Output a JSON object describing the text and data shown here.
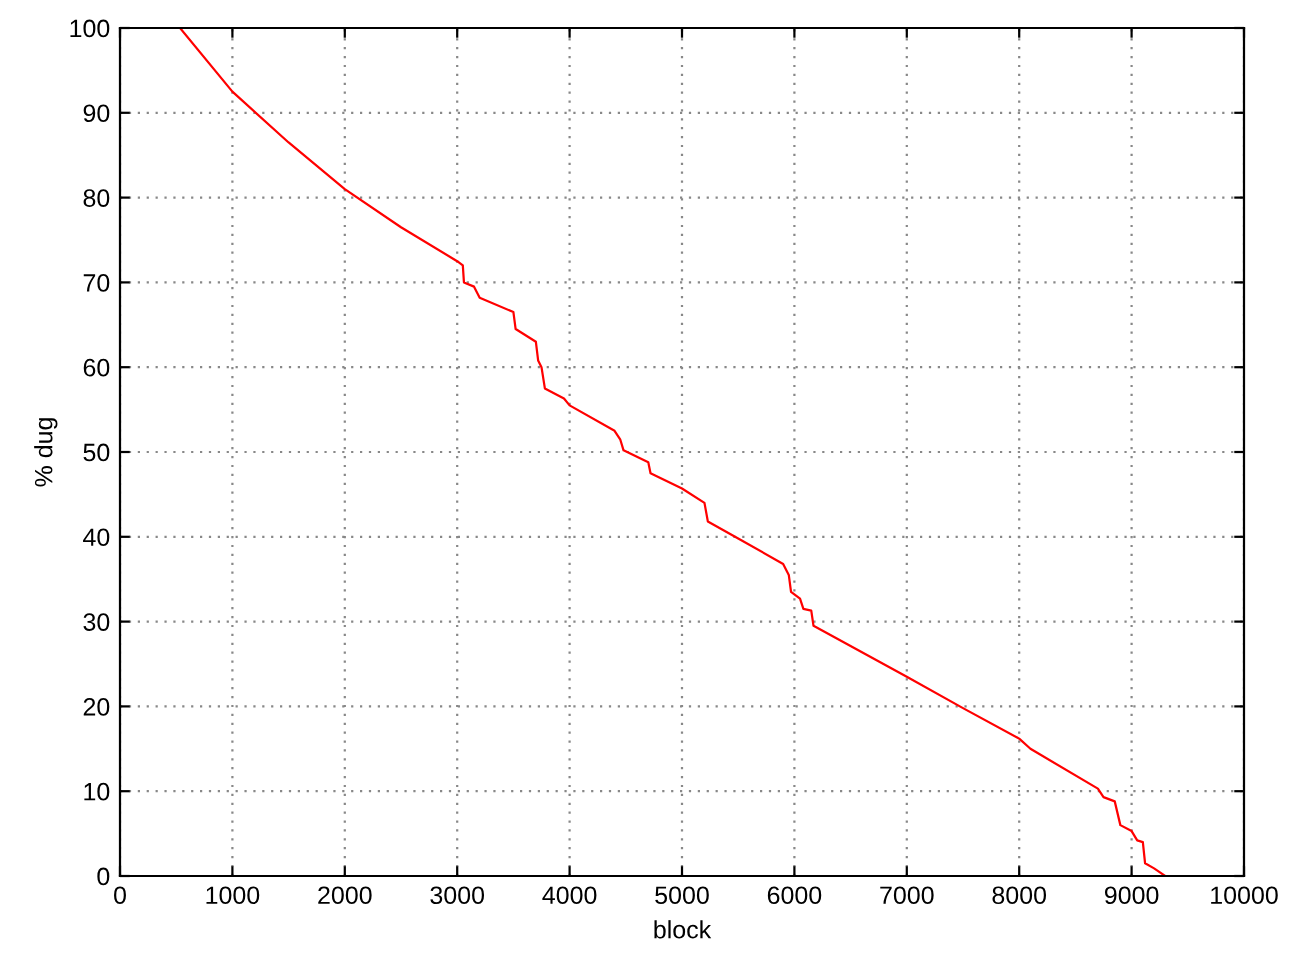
{
  "chart_data": {
    "type": "line",
    "xlabel": "block",
    "ylabel": "% dug",
    "xlim": [
      0,
      10000
    ],
    "ylim": [
      0,
      100
    ],
    "xticks": [
      0,
      1000,
      2000,
      3000,
      4000,
      5000,
      6000,
      7000,
      8000,
      9000,
      10000
    ],
    "yticks": [
      0,
      10,
      20,
      30,
      40,
      50,
      60,
      70,
      80,
      90,
      100
    ],
    "grid": true,
    "legend": false,
    "series": [
      {
        "color": "#ff0000",
        "x": [
          534,
          1000,
          1500,
          2000,
          2500,
          3000,
          3050,
          3060,
          3150,
          3200,
          3500,
          3520,
          3700,
          3720,
          3750,
          3780,
          3950,
          4000,
          4400,
          4450,
          4480,
          4700,
          4720,
          5000,
          5200,
          5230,
          5500,
          5900,
          5950,
          5970,
          6050,
          6080,
          6150,
          6170,
          7000,
          7500,
          8000,
          8100,
          8700,
          8750,
          8850,
          8900,
          9000,
          9050,
          9100,
          9120,
          9200,
          9300
        ],
        "values": [
          100,
          92.5,
          86.5,
          81,
          76.5,
          72.5,
          72,
          70,
          69.5,
          68.2,
          66.5,
          64.5,
          63,
          60.8,
          60,
          57.5,
          56.3,
          55.5,
          52.5,
          51.5,
          50.2,
          48.8,
          47.5,
          45.7,
          44,
          41.8,
          39.8,
          36.8,
          35.5,
          33.5,
          32.7,
          31.5,
          31.3,
          29.5,
          23.5,
          19.8,
          16.2,
          15,
          10.3,
          9.3,
          8.8,
          6,
          5.3,
          4.2,
          4,
          1.5,
          0.9,
          0
        ]
      }
    ]
  }
}
